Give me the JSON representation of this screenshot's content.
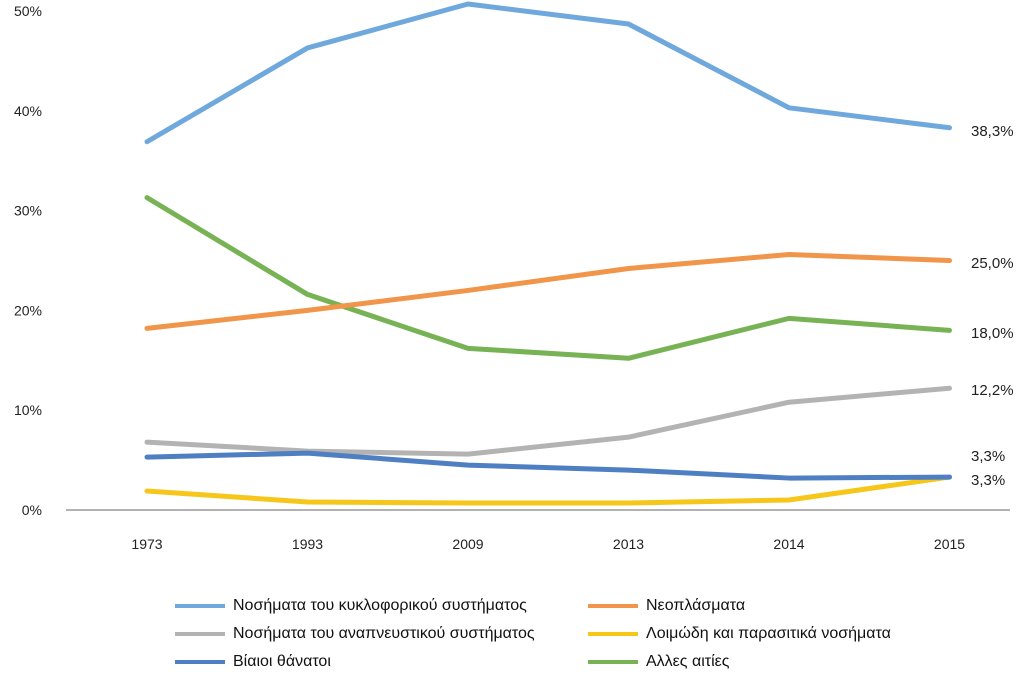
{
  "chart_data": {
    "type": "line",
    "categories": [
      "1973",
      "1993",
      "2009",
      "2013",
      "2014",
      "2015"
    ],
    "ylim": [
      0,
      50
    ],
    "yticks": [
      "0%",
      "10%",
      "20%",
      "30%",
      "40%",
      "50%"
    ],
    "grid": false,
    "legend_position": "bottom",
    "series": [
      {
        "name": "Νοσήματα του κυκλοφορικού συστήματος",
        "color": "#6fa8dc",
        "values": [
          36.9,
          46.3,
          50.7,
          48.7,
          40.3,
          38.3
        ],
        "end_label": "38,3%"
      },
      {
        "name": "Νεοπλάσματα",
        "color": "#f0954a",
        "values": [
          18.2,
          20.0,
          22.0,
          24.2,
          25.6,
          25.0
        ],
        "end_label": "25,0%"
      },
      {
        "name": "Νοσήματα του αναπνευστικού συστήματος",
        "color": "#b3b3b3",
        "values": [
          6.8,
          5.9,
          5.6,
          7.3,
          10.8,
          12.2
        ],
        "end_label": "12,2%"
      },
      {
        "name": "Λοιμώδη και παρασιτικά νοσήματα",
        "color": "#f7c61a",
        "values": [
          1.9,
          0.8,
          0.7,
          0.7,
          1.0,
          3.3
        ],
        "end_label": "3,3%"
      },
      {
        "name": "Βίαιοι θάνατοι",
        "color": "#4f7fc3",
        "values": [
          5.3,
          5.7,
          4.5,
          4.0,
          3.2,
          3.3
        ],
        "end_label": "3,3%"
      },
      {
        "name": "Αλλες αιτίες",
        "color": "#77b255",
        "values": [
          31.3,
          21.6,
          16.2,
          15.2,
          19.2,
          18.0
        ],
        "end_label": "18,0%"
      }
    ]
  }
}
